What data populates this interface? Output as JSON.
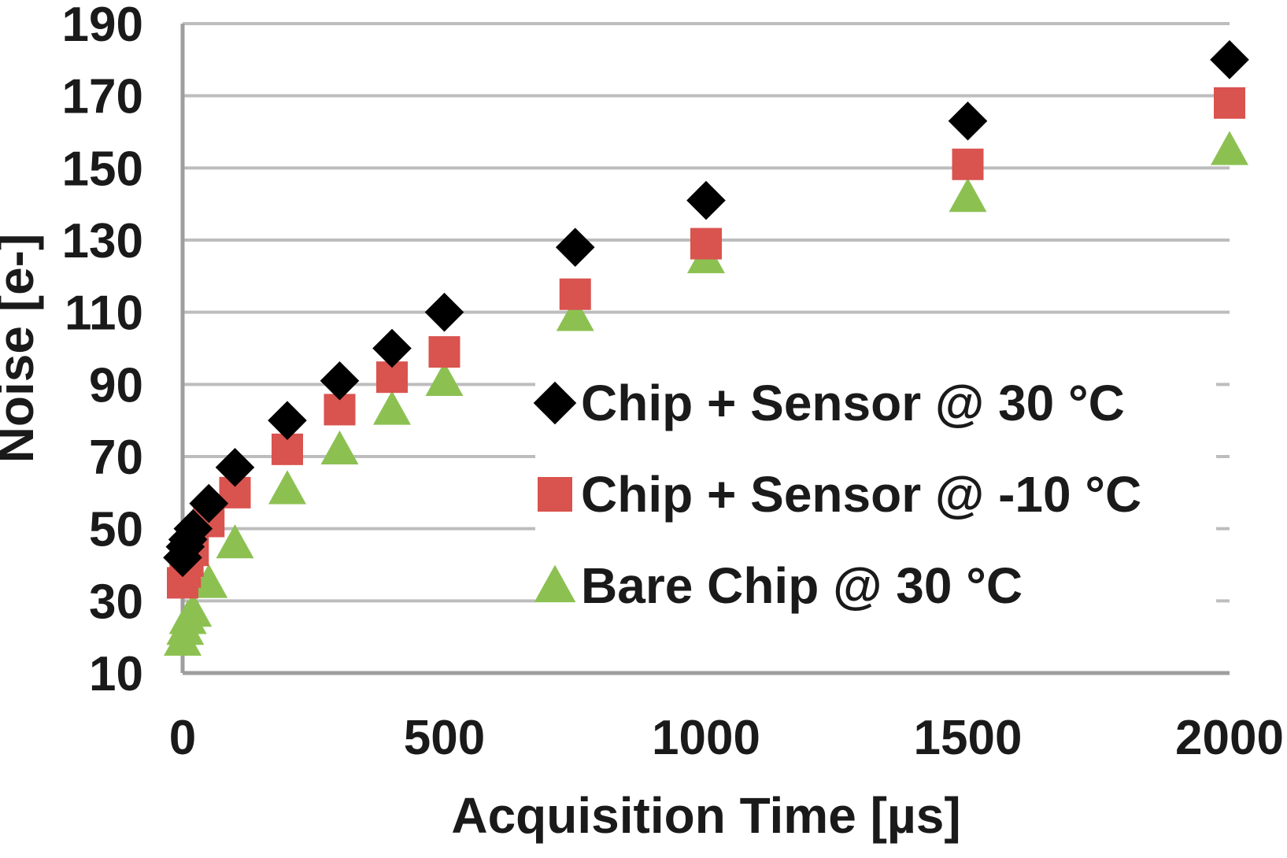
{
  "chart_data": {
    "type": "scatter",
    "xlabel": "Acquisition Time [µs]",
    "ylabel": "Noise [e-]",
    "xlim": [
      0,
      2000
    ],
    "ylim": [
      10,
      190
    ],
    "x_ticks": [
      "0",
      "500",
      "1000",
      "1500",
      "2000"
    ],
    "y_ticks": [
      "10",
      "30",
      "50",
      "70",
      "90",
      "110",
      "130",
      "150",
      "170",
      "190"
    ],
    "grid": "horizontal",
    "legend_position": "center-right",
    "series": [
      {
        "name": "Chip + Sensor @  30 °C",
        "marker": "diamond",
        "color": "#000000",
        "x": [
          0,
          5,
          10,
          20,
          50,
          100,
          200,
          300,
          400,
          500,
          750,
          1000,
          1500,
          2000
        ],
        "y": [
          42,
          45,
          47,
          50,
          57,
          67,
          80,
          91,
          100,
          110,
          128,
          141,
          163,
          180
        ]
      },
      {
        "name": "Chip + Sensor @ -10 °C",
        "marker": "square",
        "color": "#d9534f",
        "x": [
          0,
          5,
          10,
          20,
          50,
          100,
          200,
          300,
          400,
          500,
          750,
          1000,
          1500,
          2000
        ],
        "y": [
          35,
          38,
          41,
          44,
          52,
          60,
          72,
          83,
          92,
          99,
          115,
          129,
          151,
          168
        ]
      },
      {
        "name": "Bare Chip @ 30 °C",
        "marker": "triangle",
        "color": "#8cc152",
        "x": [
          0,
          5,
          10,
          20,
          50,
          100,
          200,
          300,
          400,
          500,
          750,
          1000,
          1500,
          2000
        ],
        "y": [
          19,
          22,
          25,
          27,
          35,
          46,
          61,
          72,
          83,
          91,
          109,
          125,
          142,
          155
        ]
      }
    ]
  }
}
